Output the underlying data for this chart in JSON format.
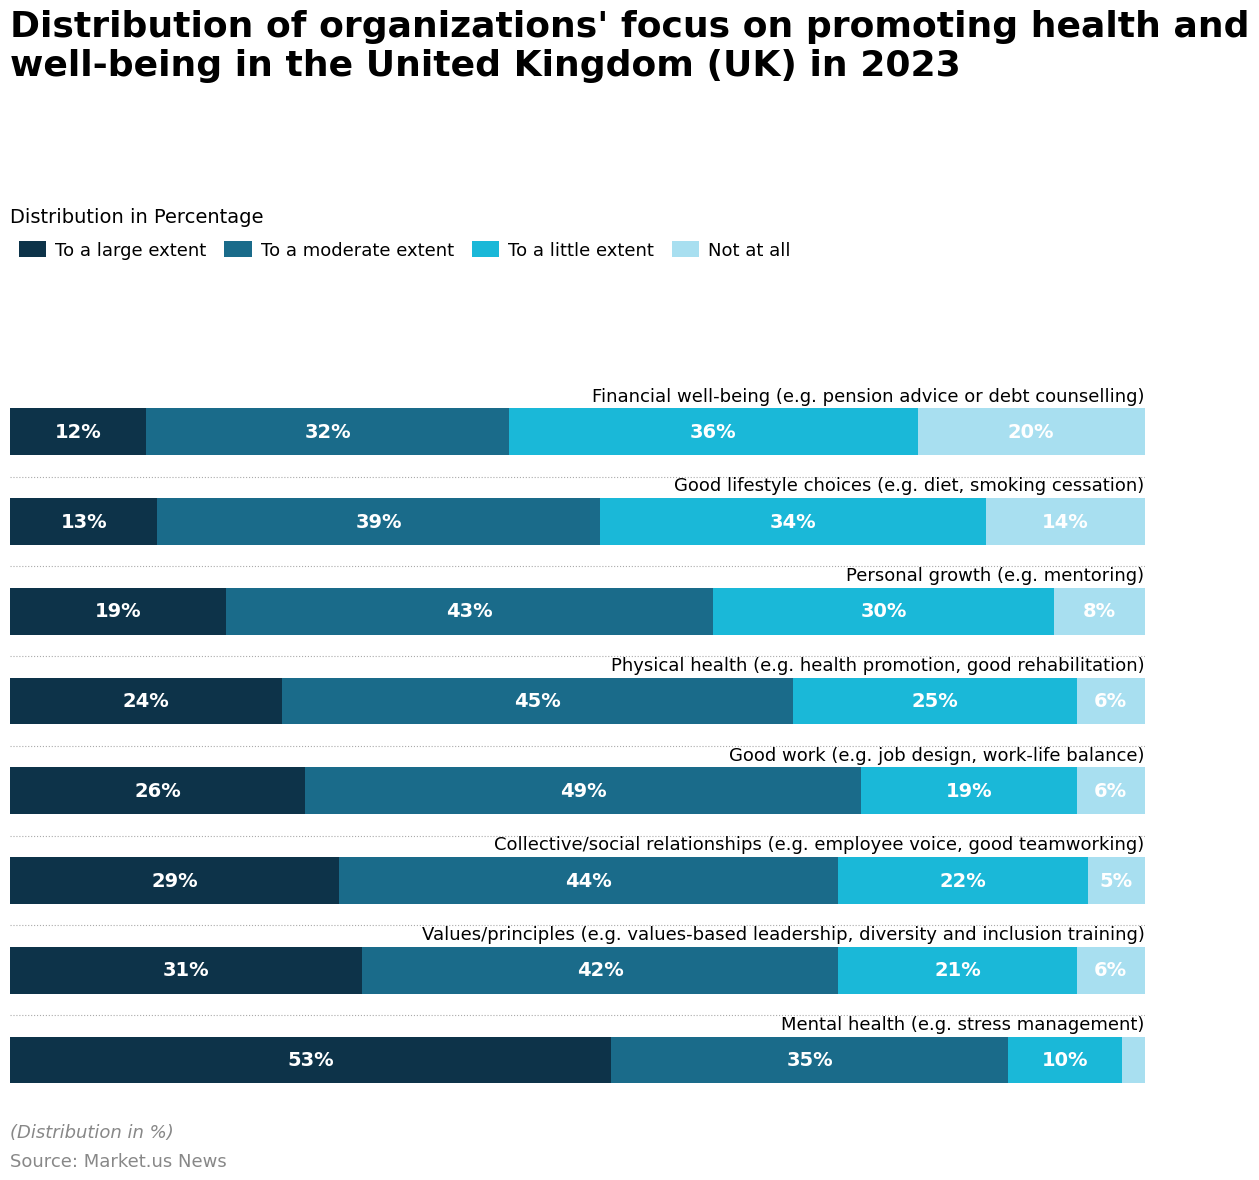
{
  "title": "Distribution of organizations' focus on promoting health and\nwell-being in the United Kingdom (UK) in 2023",
  "subtitle": "Distribution in Percentage",
  "footnote": "(Distribution in %)",
  "source": "Source: Market.us News",
  "categories": [
    "Financial well-being (e.g. pension advice or debt counselling)",
    "Good lifestyle choices (e.g. diet, smoking cessation)",
    "Personal growth (e.g. mentoring)",
    "Physical health (e.g. health promotion, good rehabilitation)",
    "Good work (e.g. job design, work-life balance)",
    "Collective/social relationships (e.g. employee voice, good teamworking)",
    "Values/principles (e.g. values-based leadership, diversity and inclusion training)",
    "Mental health (e.g. stress management)"
  ],
  "series": {
    "To a large extent": [
      12,
      13,
      19,
      24,
      26,
      29,
      31,
      53
    ],
    "To a moderate extent": [
      32,
      39,
      43,
      45,
      49,
      44,
      42,
      35
    ],
    "To a little extent": [
      36,
      34,
      30,
      25,
      19,
      22,
      21,
      10
    ],
    "Not at all": [
      20,
      14,
      8,
      6,
      6,
      5,
      6,
      2
    ]
  },
  "colors": {
    "To a large extent": "#0d3349",
    "To a moderate extent": "#1a6b8a",
    "To a little extent": "#1ab8d8",
    "Not at all": "#a8dff0"
  },
  "legend_order": [
    "To a large extent",
    "To a moderate extent",
    "To a little extent",
    "Not at all"
  ],
  "background_color": "#ffffff",
  "title_fontsize": 26,
  "subtitle_fontsize": 14,
  "bar_label_fontsize": 14,
  "legend_fontsize": 13,
  "category_fontsize": 13,
  "footnote_fontsize": 13,
  "source_fontsize": 13
}
